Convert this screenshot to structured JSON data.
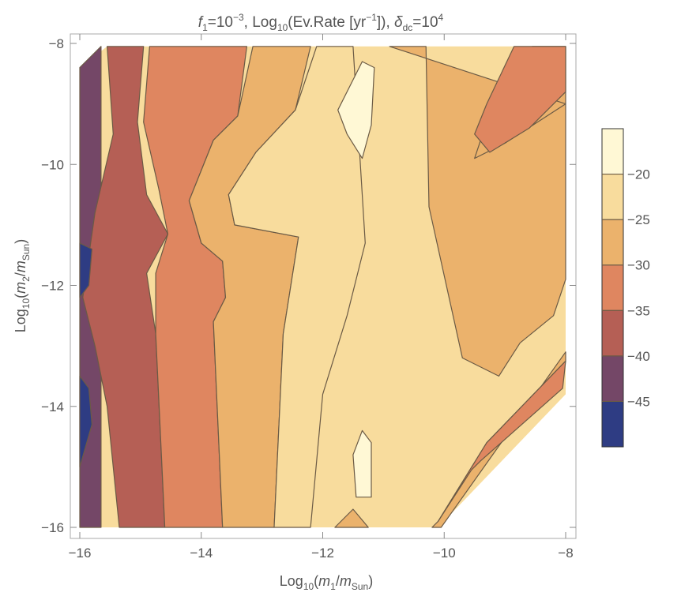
{
  "chart_data": {
    "type": "contour",
    "title": "f1=10^-3, Log10(Ev.Rate [yr^-1]), δdc=10^4",
    "title_parts": {
      "f": "f",
      "f_sub": "1",
      "eq1": "=10",
      "exp1": "−3",
      "log": ", Log",
      "log_sub": "10",
      "rate": "(Ev.Rate [yr",
      "rate_exp": "−1",
      "rate_close": "]), ",
      "delta": "δ",
      "delta_sub": "dc",
      "eq2": "=10",
      "exp2": "4"
    },
    "xlabel_parts": {
      "log": "Log",
      "sub": "10",
      "open": "(",
      "m": "m",
      "m_sub": "1",
      "slash": "/",
      "msun": "m",
      "msun_sub": "Sun",
      "close": ")"
    },
    "ylabel_parts": {
      "log": "Log",
      "sub": "10",
      "open": "(",
      "m": "m",
      "m_sub": "2",
      "slash": "/",
      "msun": "m",
      "msun_sub": "Sun",
      "close": ")"
    },
    "xlim": [
      -16,
      -8
    ],
    "ylim": [
      -16,
      -8
    ],
    "xticks": [
      -16,
      -14,
      -12,
      -10,
      -8
    ],
    "yticks": [
      -16,
      -14,
      -12,
      -10,
      -8
    ],
    "tick_labels": {
      "x": [
        "−16",
        "−14",
        "−12",
        "−10",
        "−8"
      ],
      "y": [
        "−16",
        "−14",
        "−12",
        "−10",
        "−8"
      ]
    },
    "contour_levels": [
      -20,
      -25,
      -30,
      -35,
      -40,
      -45
    ],
    "legend": {
      "labels": [
        "−20",
        "−25",
        "−30",
        "−35",
        "−40",
        "−45"
      ],
      "colors": [
        "#fff8d5",
        "#f8dc9d",
        "#ebb26c",
        "#df8660",
        "#b55f55",
        "#744767",
        "#2e3c83"
      ]
    },
    "level_colors": {
      "above_-20": "#fff8d5",
      "-25_to_-20": "#f8dc9d",
      "-30_to_-25": "#ebb26c",
      "-35_to_-30": "#df8660",
      "-40_to_-35": "#b55f55",
      "-45_to_-40": "#744767",
      "below_-45": "#2e3c83"
    },
    "regions": [
      {
        "band": "-45_to_-40",
        "points": [
          [
            -16,
            -8.4
          ],
          [
            -15.65,
            -8.05
          ],
          [
            -15.65,
            -16
          ],
          [
            -16,
            -16
          ]
        ]
      },
      {
        "band": "-40_to_-35",
        "points": [
          [
            -15.55,
            -8.05
          ],
          [
            -14.95,
            -8.05
          ],
          [
            -15.05,
            -9.3
          ],
          [
            -14.9,
            -10.5
          ],
          [
            -14.55,
            -11.15
          ],
          [
            -14.9,
            -11.8
          ],
          [
            -14.75,
            -12.8
          ],
          [
            -14.6,
            -16
          ],
          [
            -15.35,
            -16
          ],
          [
            -15.55,
            -14
          ],
          [
            -15.75,
            -13
          ],
          [
            -15.95,
            -12.2
          ],
          [
            -15.75,
            -10.8
          ],
          [
            -15.45,
            -9.5
          ]
        ]
      },
      {
        "band": "-35_to_-30",
        "points": [
          [
            -14.85,
            -8.05
          ],
          [
            -13.25,
            -8.05
          ],
          [
            -13.4,
            -9.2
          ],
          [
            -13.8,
            -9.6
          ],
          [
            -14.2,
            -10.6
          ],
          [
            -14.0,
            -11.3
          ],
          [
            -13.65,
            -11.6
          ],
          [
            -13.6,
            -12.2
          ],
          [
            -13.8,
            -12.6
          ],
          [
            -13.65,
            -16
          ],
          [
            -14.6,
            -16
          ],
          [
            -14.75,
            -12.8
          ],
          [
            -14.75,
            -11.8
          ],
          [
            -14.55,
            -11.15
          ],
          [
            -14.7,
            -10.4
          ],
          [
            -14.95,
            -9.3
          ]
        ]
      },
      {
        "band": "-30_to_-25",
        "points": [
          [
            -13.15,
            -8.05
          ],
          [
            -12.2,
            -8.05
          ],
          [
            -12.45,
            -9.1
          ],
          [
            -13.1,
            -9.8
          ],
          [
            -13.55,
            -10.5
          ],
          [
            -13.45,
            -11.0
          ],
          [
            -12.4,
            -11.2
          ],
          [
            -12.65,
            -12.8
          ],
          [
            -12.8,
            -16
          ],
          [
            -13.65,
            -16
          ],
          [
            -13.8,
            -12.6
          ],
          [
            -13.6,
            -12.2
          ],
          [
            -13.65,
            -11.6
          ],
          [
            -14.0,
            -11.3
          ],
          [
            -14.2,
            -10.6
          ],
          [
            -13.8,
            -9.6
          ],
          [
            -13.4,
            -9.2
          ]
        ]
      },
      {
        "band": "-25_to_-20",
        "points": [
          [
            -12.1,
            -8.05
          ],
          [
            -11.5,
            -8.05
          ],
          [
            -11.3,
            -11.3
          ],
          [
            -11.6,
            -12.5
          ],
          [
            -12.0,
            -13.8
          ],
          [
            -12.2,
            -16
          ],
          [
            -12.8,
            -16
          ],
          [
            -12.65,
            -12.8
          ],
          [
            -12.4,
            -11.2
          ],
          [
            -13.45,
            -11.0
          ],
          [
            -13.55,
            -10.5
          ],
          [
            -13.1,
            -9.8
          ],
          [
            -12.45,
            -9.1
          ]
        ]
      },
      {
        "band": "-30_to_-25",
        "points": [
          [
            -10.9,
            -8.05
          ],
          [
            -10.3,
            -8.05
          ],
          [
            -10.25,
            -10.7
          ],
          [
            -9.7,
            -13.2
          ],
          [
            -9.1,
            -13.5
          ],
          [
            -8.75,
            -12.95
          ],
          [
            -8.2,
            -12.5
          ],
          [
            -8.0,
            -11.9
          ],
          [
            -8.0,
            -8.05
          ],
          [
            -8.55,
            -8.05
          ],
          [
            -9.3,
            -9.3
          ],
          [
            -9.5,
            -9.9
          ],
          [
            -9.0,
            -9.65
          ],
          [
            -8.0,
            -9.0
          ]
        ]
      },
      {
        "band": "-35_to_-30",
        "points": [
          [
            -8.85,
            -8.05
          ],
          [
            -8.0,
            -8.05
          ],
          [
            -8.0,
            -8.8
          ],
          [
            -8.6,
            -9.4
          ],
          [
            -9.25,
            -9.8
          ],
          [
            -9.5,
            -9.5
          ],
          [
            -9.3,
            -9.0
          ]
        ]
      },
      {
        "band": "above_-20",
        "points": [
          [
            -11.35,
            -8.3
          ],
          [
            -11.15,
            -8.4
          ],
          [
            -11.2,
            -9.35
          ],
          [
            -11.35,
            -9.9
          ],
          [
            -11.6,
            -9.5
          ],
          [
            -11.75,
            -9.1
          ]
        ]
      },
      {
        "band": "above_-20",
        "points": [
          [
            -11.35,
            -14.4
          ],
          [
            -11.2,
            -14.6
          ],
          [
            -11.2,
            -15.5
          ],
          [
            -11.45,
            -15.5
          ],
          [
            -11.5,
            -14.8
          ]
        ]
      },
      {
        "band": "-30_to_-25",
        "points": [
          [
            -11.8,
            -16
          ],
          [
            -11.5,
            -15.7
          ],
          [
            -11.25,
            -16
          ]
        ]
      },
      {
        "band": "-30_to_-25",
        "points": [
          [
            -8.0,
            -13.1
          ],
          [
            -8.0,
            -13.25
          ],
          [
            -9.3,
            -14.6
          ],
          [
            -10.1,
            -15.9
          ],
          [
            -10.2,
            -16
          ],
          [
            -10.05,
            -16
          ]
        ]
      },
      {
        "band": "-35_to_-30",
        "points": [
          [
            -8.0,
            -13.25
          ],
          [
            -8.05,
            -13.7
          ],
          [
            -9.4,
            -14.9
          ],
          [
            -9.55,
            -15.05
          ],
          [
            -10.1,
            -15.9
          ],
          [
            -9.3,
            -14.6
          ]
        ]
      },
      {
        "band": "below_-45",
        "points": [
          [
            -16,
            -11.3
          ],
          [
            -15.8,
            -11.4
          ],
          [
            -15.85,
            -12.0
          ],
          [
            -16,
            -12.2
          ]
        ]
      },
      {
        "band": "below_-45",
        "points": [
          [
            -16,
            -13.5
          ],
          [
            -15.85,
            -13.7
          ],
          [
            -15.8,
            -14.3
          ],
          [
            -16,
            -15.0
          ]
        ]
      }
    ]
  }
}
